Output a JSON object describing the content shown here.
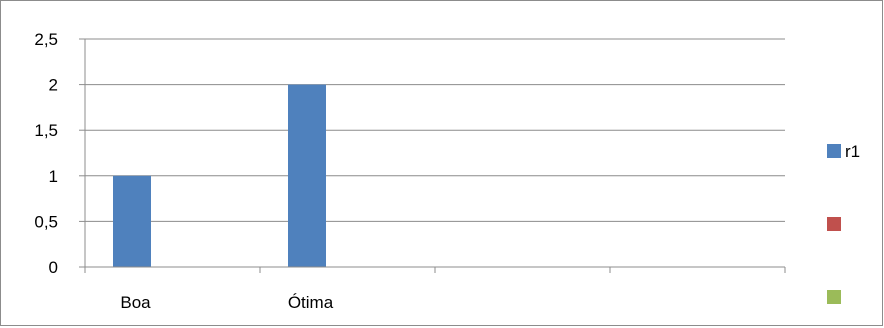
{
  "chart_data": {
    "type": "bar",
    "categories": [
      "Boa",
      "Ótima",
      "",
      ""
    ],
    "series": [
      {
        "name": "r1",
        "color": "#4f81bd",
        "values": [
          1,
          2,
          null,
          null
        ]
      },
      {
        "name": "",
        "color": "#c0504d",
        "values": [
          null,
          null,
          null,
          null
        ]
      },
      {
        "name": "",
        "color": "#9bbb59",
        "values": [
          null,
          null,
          null,
          null
        ]
      }
    ],
    "y_ticks": [
      "0",
      "0,5",
      "1",
      "1,5",
      "2",
      "2,5"
    ],
    "ylim": [
      0,
      2.5
    ],
    "gridlines": true,
    "legend_position": "right"
  }
}
